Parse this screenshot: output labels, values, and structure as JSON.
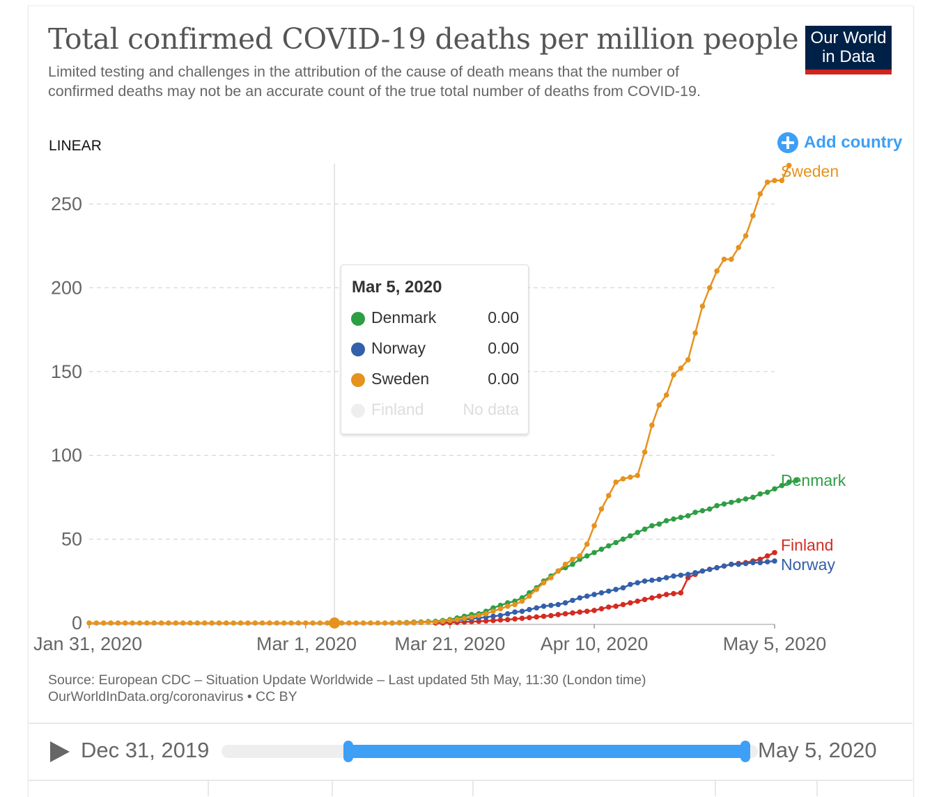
{
  "header": {
    "title": "Total confirmed COVID-19 deaths per million people",
    "subtitle": "Limited testing and challenges in the attribution of the cause of death means that the number of confirmed deaths may not be an accurate count of the true total number of deaths from COVID-19.",
    "logo_line1": "Our World",
    "logo_line2": "in Data"
  },
  "controls": {
    "scale_label": "LINEAR",
    "add_country_label": "Add country"
  },
  "tooltip": {
    "date": "Mar 5, 2020",
    "rows": [
      {
        "name": "Denmark",
        "value": "0.00",
        "color": "#2e9e44"
      },
      {
        "name": "Norway",
        "value": "0.00",
        "color": "#3360a9"
      },
      {
        "name": "Sweden",
        "value": "0.00",
        "color": "#e6921e"
      },
      {
        "name": "Finland",
        "value": "No data",
        "color": "#eeeeee"
      }
    ]
  },
  "footer": {
    "source": "Source: European CDC – Situation Update Worldwide – Last updated 5th May, 11:30 (London time)",
    "license": "OurWorldInData.org/coronavirus • CC BY"
  },
  "timeline": {
    "start_label": "Dec 31, 2019",
    "end_label": "May 5, 2020",
    "selected_start": "Jan 31, 2020",
    "selected_end": "May 5, 2020"
  },
  "chart_data": {
    "type": "line",
    "title": "Total confirmed COVID-19 deaths per million people",
    "xlabel": "",
    "ylabel": "",
    "x_start": "Jan 31, 2020",
    "x_unit": "days since Jan 31, 2020",
    "xlim": [
      0,
      95
    ],
    "ylim": [
      0,
      275
    ],
    "yticks": [
      0,
      50,
      100,
      150,
      200,
      250
    ],
    "xticks": [
      {
        "day": 0,
        "label": "Jan 31, 2020"
      },
      {
        "day": 30,
        "label": "Mar 1, 2020"
      },
      {
        "day": 50,
        "label": "Mar 21, 2020"
      },
      {
        "day": 70,
        "label": "Apr 10, 2020"
      },
      {
        "day": 95,
        "label": "May 5, 2020"
      }
    ],
    "grid": true,
    "hover_day": 34,
    "legend": "right-inline",
    "series": [
      {
        "name": "Sweden",
        "color": "#e6921e",
        "start_day": 0,
        "values": [
          0,
          0,
          0,
          0,
          0,
          0,
          0,
          0,
          0,
          0,
          0,
          0,
          0,
          0,
          0,
          0,
          0,
          0,
          0,
          0,
          0,
          0,
          0,
          0,
          0,
          0,
          0,
          0,
          0,
          0,
          0,
          0,
          0,
          0,
          0,
          0,
          0,
          0,
          0,
          0,
          0,
          0,
          0,
          0.1,
          0.1,
          0.2,
          0.3,
          0.5,
          0.7,
          1,
          1.5,
          2,
          2.7,
          3.5,
          4.5,
          5.5,
          7,
          8.5,
          10,
          11,
          13,
          16,
          20,
          24,
          27,
          31,
          35,
          38,
          40,
          47,
          58,
          68,
          76,
          84,
          86,
          87,
          88,
          102,
          118,
          130,
          136,
          148,
          152,
          157,
          173,
          189,
          200,
          210,
          217,
          217,
          224,
          231,
          243,
          256,
          263,
          264,
          264,
          273
        ]
      },
      {
        "name": "Denmark",
        "color": "#2e9e44",
        "start_day": 42,
        "values": [
          0,
          0.2,
          0.3,
          0.5,
          0.6,
          0.8,
          1,
          1.5,
          2,
          3,
          4,
          5,
          5.5,
          7,
          9,
          10.5,
          12,
          13,
          15,
          18,
          21,
          25,
          28,
          31,
          33,
          35,
          38,
          40,
          42,
          44,
          46,
          48,
          50,
          52,
          54,
          56,
          58,
          59,
          61,
          62,
          63,
          64,
          66,
          67,
          68,
          70,
          71,
          72,
          73,
          74,
          75,
          77,
          78,
          80,
          82,
          84,
          85
        ]
      },
      {
        "name": "Norway",
        "color": "#3360a9",
        "start_day": 44,
        "values": [
          0,
          0.2,
          0.4,
          0.6,
          0.8,
          1,
          1.3,
          1.7,
          2,
          2.5,
          3,
          3.5,
          4,
          4.5,
          5.5,
          6.5,
          7,
          8,
          9,
          10,
          10.5,
          11,
          12,
          13.5,
          15,
          16,
          17,
          18,
          19,
          20,
          21,
          23,
          24,
          25,
          25.5,
          26,
          27,
          28,
          28.5,
          29,
          30,
          31,
          32,
          33,
          34,
          35,
          35,
          35.5,
          36,
          36,
          36.5,
          37
        ]
      },
      {
        "name": "Finland",
        "color": "#d42b21",
        "start_day": 48,
        "values": [
          0,
          0,
          0.2,
          0.4,
          0.6,
          0.8,
          1,
          1.2,
          1.5,
          1.8,
          2,
          2.4,
          2.8,
          3.2,
          3.6,
          4,
          4.4,
          5,
          5.5,
          6,
          6.5,
          7,
          7.5,
          8.5,
          9.5,
          10,
          11,
          12,
          13,
          14,
          15,
          16,
          17,
          17.5,
          18,
          27,
          29,
          31,
          32,
          33,
          34,
          35,
          35.5,
          36,
          37,
          38,
          40,
          42
        ]
      }
    ]
  }
}
